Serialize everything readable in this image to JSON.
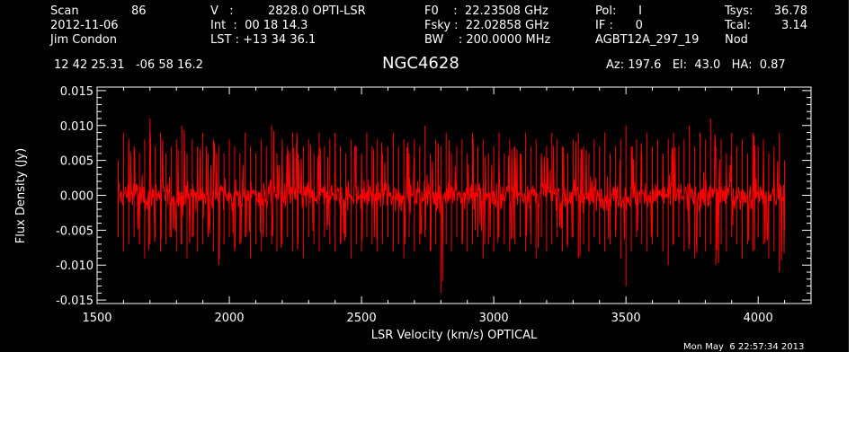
{
  "header": {
    "col1": [
      "Scan",
      "2012-11-06",
      "Jim Condon"
    ],
    "scan_number": "86",
    "col2": [
      "V   :",
      "Int  :  00 18 14.3",
      "LST : +13 34 36.1"
    ],
    "velocity_value": "2828.0 OPTI-LSR",
    "col3": [
      "F0    :  22.23508 GHz",
      "Fsky :  22.02858 GHz",
      "BW    : 200.0000 MHz"
    ],
    "col4": [
      "Pol:      I",
      "IF :      0",
      "AGBT12A_297_19"
    ],
    "col5_labels": [
      "Tsys:",
      "Tcal:",
      "Nod"
    ],
    "col5_values": [
      "36.78",
      "3.14",
      ""
    ],
    "coords": "12 42 25.31   -06 58 16.2",
    "source": "NGC4628",
    "pointing": "Az: 197.6   El:  43.0   HA:  0.87"
  },
  "footer": {
    "date": "Mon May  6 22:57:34 2013"
  },
  "colors": {
    "background": "#000000",
    "foreground": "#ffffff",
    "series": "#ff0000"
  },
  "chart_data": {
    "type": "line",
    "title": "NGC4628",
    "xlabel": "LSR Velocity (km/s) OPTICAL",
    "ylabel": "Flux Density (Jy)",
    "xlim": [
      1500,
      4200
    ],
    "ylim": [
      -0.0155,
      0.0155
    ],
    "xticks": [
      1500,
      2000,
      2500,
      3000,
      3500,
      4000
    ],
    "xtick_labels": [
      "1500",
      "2000",
      "2500",
      "3000",
      "3500",
      "4000"
    ],
    "yticks": [
      0.015,
      0.01,
      0.005,
      0.0,
      -0.005,
      -0.01,
      -0.015
    ],
    "ytick_labels": [
      "0.015",
      "0.010",
      "0.005",
      "0.000",
      "-0.005",
      "-0.010",
      "-0.015"
    ],
    "grid": false,
    "series": [
      {
        "x": [
          1580,
          1600,
          1620,
          1640,
          1660,
          1680,
          1700,
          1720,
          1740,
          1760,
          1780,
          1800,
          1820,
          1840,
          1860,
          1880,
          1900,
          1920,
          1940,
          1960,
          1980,
          2000,
          2020,
          2040,
          2060,
          2080,
          2100,
          2120,
          2140,
          2160,
          2180,
          2200,
          2220,
          2240,
          2260,
          2280,
          2300,
          2320,
          2340,
          2360,
          2380,
          2400,
          2420,
          2440,
          2460,
          2480,
          2500,
          2520,
          2540,
          2560,
          2580,
          2600,
          2620,
          2640,
          2660,
          2680,
          2700,
          2720,
          2740,
          2760,
          2780,
          2800,
          2820,
          2840,
          2860,
          2880,
          2900,
          2920,
          2940,
          2960,
          2980,
          3000,
          3020,
          3040,
          3060,
          3080,
          3100,
          3120,
          3140,
          3160,
          3180,
          3200,
          3220,
          3240,
          3260,
          3280,
          3300,
          3320,
          3340,
          3360,
          3380,
          3400,
          3420,
          3440,
          3460,
          3480,
          3500,
          3520,
          3540,
          3560,
          3580,
          3600,
          3620,
          3640,
          3660,
          3680,
          3700,
          3720,
          3740,
          3760,
          3780,
          3800,
          3820,
          3840,
          3860,
          3880,
          3900,
          3920,
          3940,
          3960,
          3980,
          4000,
          4020,
          4040,
          4060,
          4080,
          4100
        ],
        "ymax": [
          0.005,
          0.009,
          0.008,
          0.007,
          0.006,
          0.008,
          0.011,
          0.007,
          0.009,
          0.006,
          0.007,
          0.008,
          0.01,
          0.006,
          0.008,
          0.007,
          0.009,
          0.006,
          0.008,
          0.007,
          0.006,
          0.008,
          0.007,
          0.006,
          0.009,
          0.007,
          0.006,
          0.008,
          0.007,
          0.01,
          0.006,
          0.008,
          0.007,
          0.009,
          0.006,
          0.007,
          0.008,
          0.006,
          0.009,
          0.007,
          0.008,
          0.009,
          0.007,
          0.006,
          0.008,
          0.007,
          0.006,
          0.009,
          0.007,
          0.008,
          0.006,
          0.007,
          0.009,
          0.007,
          0.008,
          0.006,
          0.008,
          0.007,
          0.01,
          0.006,
          0.008,
          0.007,
          0.009,
          0.006,
          0.007,
          0.008,
          0.006,
          0.009,
          0.007,
          0.008,
          0.006,
          0.007,
          0.009,
          0.006,
          0.008,
          0.007,
          0.006,
          0.009,
          0.007,
          0.008,
          0.006,
          0.007,
          0.009,
          0.008,
          0.007,
          0.006,
          0.008,
          0.009,
          0.007,
          0.006,
          0.008,
          0.007,
          0.009,
          0.006,
          0.007,
          0.008,
          0.01,
          0.007,
          0.008,
          0.006,
          0.009,
          0.007,
          0.008,
          0.006,
          0.008,
          0.009,
          0.007,
          0.008,
          0.01,
          0.007,
          0.009,
          0.008,
          0.011,
          0.007,
          0.008,
          0.006,
          0.009,
          0.007,
          0.008,
          0.006,
          0.009,
          0.007,
          0.008,
          0.006,
          0.007,
          0.009,
          0.005
        ],
        "ymin": [
          -0.006,
          -0.008,
          -0.007,
          -0.006,
          -0.007,
          -0.009,
          -0.007,
          -0.006,
          -0.008,
          -0.007,
          -0.006,
          -0.008,
          -0.007,
          -0.009,
          -0.006,
          -0.008,
          -0.007,
          -0.006,
          -0.008,
          -0.01,
          -0.007,
          -0.006,
          -0.008,
          -0.007,
          -0.006,
          -0.009,
          -0.007,
          -0.008,
          -0.006,
          -0.007,
          -0.008,
          -0.007,
          -0.006,
          -0.008,
          -0.007,
          -0.009,
          -0.006,
          -0.007,
          -0.008,
          -0.006,
          -0.007,
          -0.008,
          -0.007,
          -0.006,
          -0.009,
          -0.007,
          -0.008,
          -0.006,
          -0.007,
          -0.008,
          -0.007,
          -0.006,
          -0.008,
          -0.007,
          -0.009,
          -0.006,
          -0.008,
          -0.007,
          -0.006,
          -0.008,
          -0.007,
          -0.014,
          -0.007,
          -0.008,
          -0.006,
          -0.007,
          -0.008,
          -0.007,
          -0.006,
          -0.009,
          -0.007,
          -0.008,
          -0.006,
          -0.007,
          -0.008,
          -0.007,
          -0.006,
          -0.008,
          -0.007,
          -0.009,
          -0.006,
          -0.008,
          -0.007,
          -0.006,
          -0.008,
          -0.007,
          -0.006,
          -0.009,
          -0.007,
          -0.008,
          -0.006,
          -0.007,
          -0.008,
          -0.007,
          -0.006,
          -0.009,
          -0.013,
          -0.008,
          -0.006,
          -0.007,
          -0.008,
          -0.007,
          -0.006,
          -0.008,
          -0.01,
          -0.007,
          -0.006,
          -0.008,
          -0.007,
          -0.009,
          -0.006,
          -0.008,
          -0.007,
          -0.01,
          -0.007,
          -0.008,
          -0.006,
          -0.007,
          -0.009,
          -0.007,
          -0.008,
          -0.006,
          -0.007,
          -0.009,
          -0.008,
          -0.011,
          -0.005
        ]
      }
    ]
  }
}
